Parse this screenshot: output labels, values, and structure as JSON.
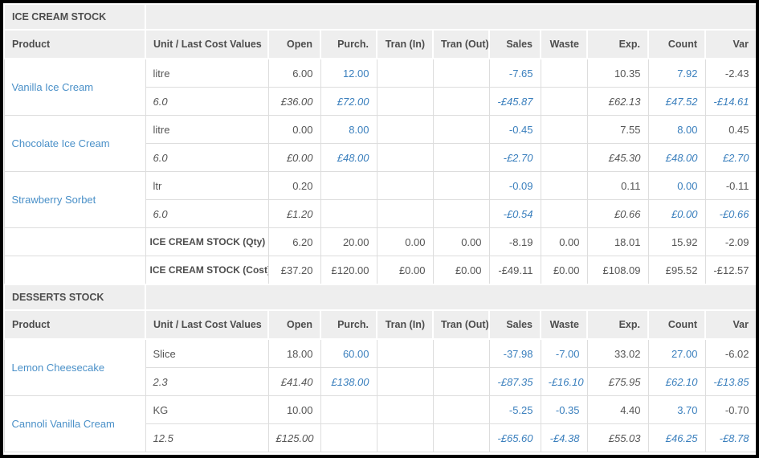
{
  "report": {
    "currency_symbol": "£"
  },
  "colors": {
    "header_background": "#eeeeee",
    "header_text": "#4d4d4d",
    "body_text": "#555555",
    "value_blue": "#3a7fbd",
    "product_link_blue": "#4a90c8",
    "grid_line": "#dddddd",
    "outer_border": "#000000"
  },
  "columns": [
    "Product",
    "Unit / Last Cost Values",
    "Open",
    "Purch.",
    "Tran (In)",
    "Tran (Out)",
    "Sales",
    "Waste",
    "Exp.",
    "Count",
    "Var"
  ],
  "sections": [
    {
      "title": "ICE CREAM STOCK",
      "products": [
        {
          "name": "Vanilla Ice Cream",
          "unit_row": {
            "unit": "litre",
            "values": [
              "6.00",
              "12.00",
              "",
              "",
              "-7.65",
              "",
              "10.35",
              "7.92",
              "-2.43"
            ],
            "blue": [
              1,
              4,
              7
            ]
          },
          "cost_row": {
            "unit": "6.0",
            "values": [
              "£36.00",
              "£72.00",
              "",
              "",
              "-£45.87",
              "",
              "£62.13",
              "£47.52",
              "-£14.61"
            ],
            "blue": [
              1,
              4,
              7,
              8
            ]
          }
        },
        {
          "name": "Chocolate Ice Cream",
          "unit_row": {
            "unit": "litre",
            "values": [
              "0.00",
              "8.00",
              "",
              "",
              "-0.45",
              "",
              "7.55",
              "8.00",
              "0.45"
            ],
            "blue": [
              1,
              4,
              7
            ]
          },
          "cost_row": {
            "unit": "6.0",
            "values": [
              "£0.00",
              "£48.00",
              "",
              "",
              "-£2.70",
              "",
              "£45.30",
              "£48.00",
              "£2.70"
            ],
            "blue": [
              1,
              4,
              7,
              8
            ]
          }
        },
        {
          "name": "Strawberry Sorbet",
          "unit_row": {
            "unit": "ltr",
            "values": [
              "0.20",
              "",
              "",
              "",
              "-0.09",
              "",
              "0.11",
              "0.00",
              "-0.11"
            ],
            "blue": [
              4,
              7
            ]
          },
          "cost_row": {
            "unit": "6.0",
            "values": [
              "£1.20",
              "",
              "",
              "",
              "-£0.54",
              "",
              "£0.66",
              "£0.00",
              "-£0.66"
            ],
            "blue": [
              4,
              7,
              8
            ]
          }
        }
      ],
      "totals": [
        {
          "label": "ICE CREAM STOCK (Qty)",
          "values": [
            "6.20",
            "20.00",
            "0.00",
            "0.00",
            "-8.19",
            "0.00",
            "18.01",
            "15.92",
            "-2.09"
          ]
        },
        {
          "label": "ICE CREAM STOCK (Cost)",
          "values": [
            "£37.20",
            "£120.00",
            "£0.00",
            "£0.00",
            "-£49.11",
            "£0.00",
            "£108.09",
            "£95.52",
            "-£12.57"
          ]
        }
      ]
    },
    {
      "title": "DESSERTS STOCK",
      "products": [
        {
          "name": "Lemon Cheesecake",
          "unit_row": {
            "unit": "Slice",
            "values": [
              "18.00",
              "60.00",
              "",
              "",
              "-37.98",
              "-7.00",
              "33.02",
              "27.00",
              "-6.02"
            ],
            "blue": [
              1,
              4,
              5,
              7
            ]
          },
          "cost_row": {
            "unit": "2.3",
            "values": [
              "£41.40",
              "£138.00",
              "",
              "",
              "-£87.35",
              "-£16.10",
              "£75.95",
              "£62.10",
              "-£13.85"
            ],
            "blue": [
              1,
              4,
              5,
              7,
              8
            ]
          }
        },
        {
          "name": "Cannoli Vanilla Cream",
          "unit_row": {
            "unit": "KG",
            "values": [
              "10.00",
              "",
              "",
              "",
              "-5.25",
              "-0.35",
              "4.40",
              "3.70",
              "-0.70"
            ],
            "blue": [
              4,
              5,
              7
            ]
          },
          "cost_row": {
            "unit": "12.5",
            "values": [
              "£125.00",
              "",
              "",
              "",
              "-£65.60",
              "-£4.38",
              "£55.03",
              "£46.25",
              "-£8.78"
            ],
            "blue": [
              4,
              5,
              7,
              8
            ]
          }
        }
      ],
      "totals": []
    }
  ]
}
